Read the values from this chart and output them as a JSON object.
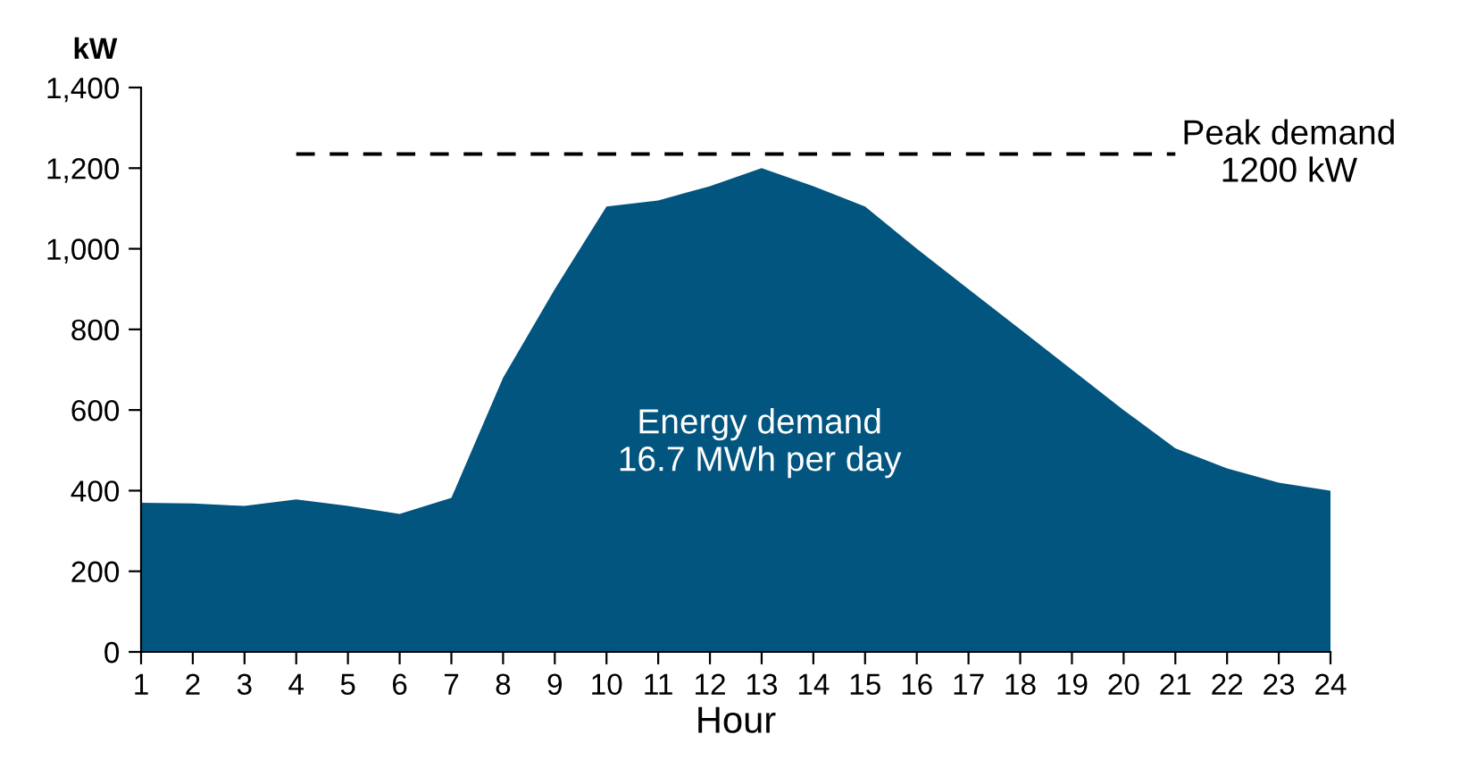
{
  "chart_data": {
    "type": "area",
    "ylabel": "kW",
    "xlabel": "Hour",
    "categories": [
      "1",
      "2",
      "3",
      "4",
      "5",
      "6",
      "7",
      "8",
      "9",
      "10",
      "11",
      "12",
      "13",
      "14",
      "15",
      "16",
      "17",
      "18",
      "19",
      "20",
      "21",
      "22",
      "23",
      "24"
    ],
    "series": [
      {
        "color": "#02557f",
        "values": [
          370,
          368,
          362,
          378,
          362,
          342,
          382,
          680,
          900,
          1105,
          1120,
          1155,
          1200,
          1155,
          1105,
          1000,
          900,
          800,
          700,
          600,
          505,
          455,
          420,
          400
        ]
      }
    ],
    "ylim": [
      0,
      1400
    ],
    "yticks": [
      0,
      200,
      400,
      600,
      800,
      {
        "value": 1000,
        "label": "1,000"
      },
      {
        "value": 1200,
        "label": "1,200"
      },
      {
        "value": 1400,
        "label": "1,400"
      }
    ],
    "ref_lines": [
      {
        "axis": "y",
        "value": 1235,
        "label": "Peak demand\n1200 kW",
        "color": "#000000",
        "line_style": "dashed"
      }
    ],
    "annotations": [
      "Energy demand\n16.7 MWh per day"
    ],
    "grid": false,
    "legend": false
  }
}
